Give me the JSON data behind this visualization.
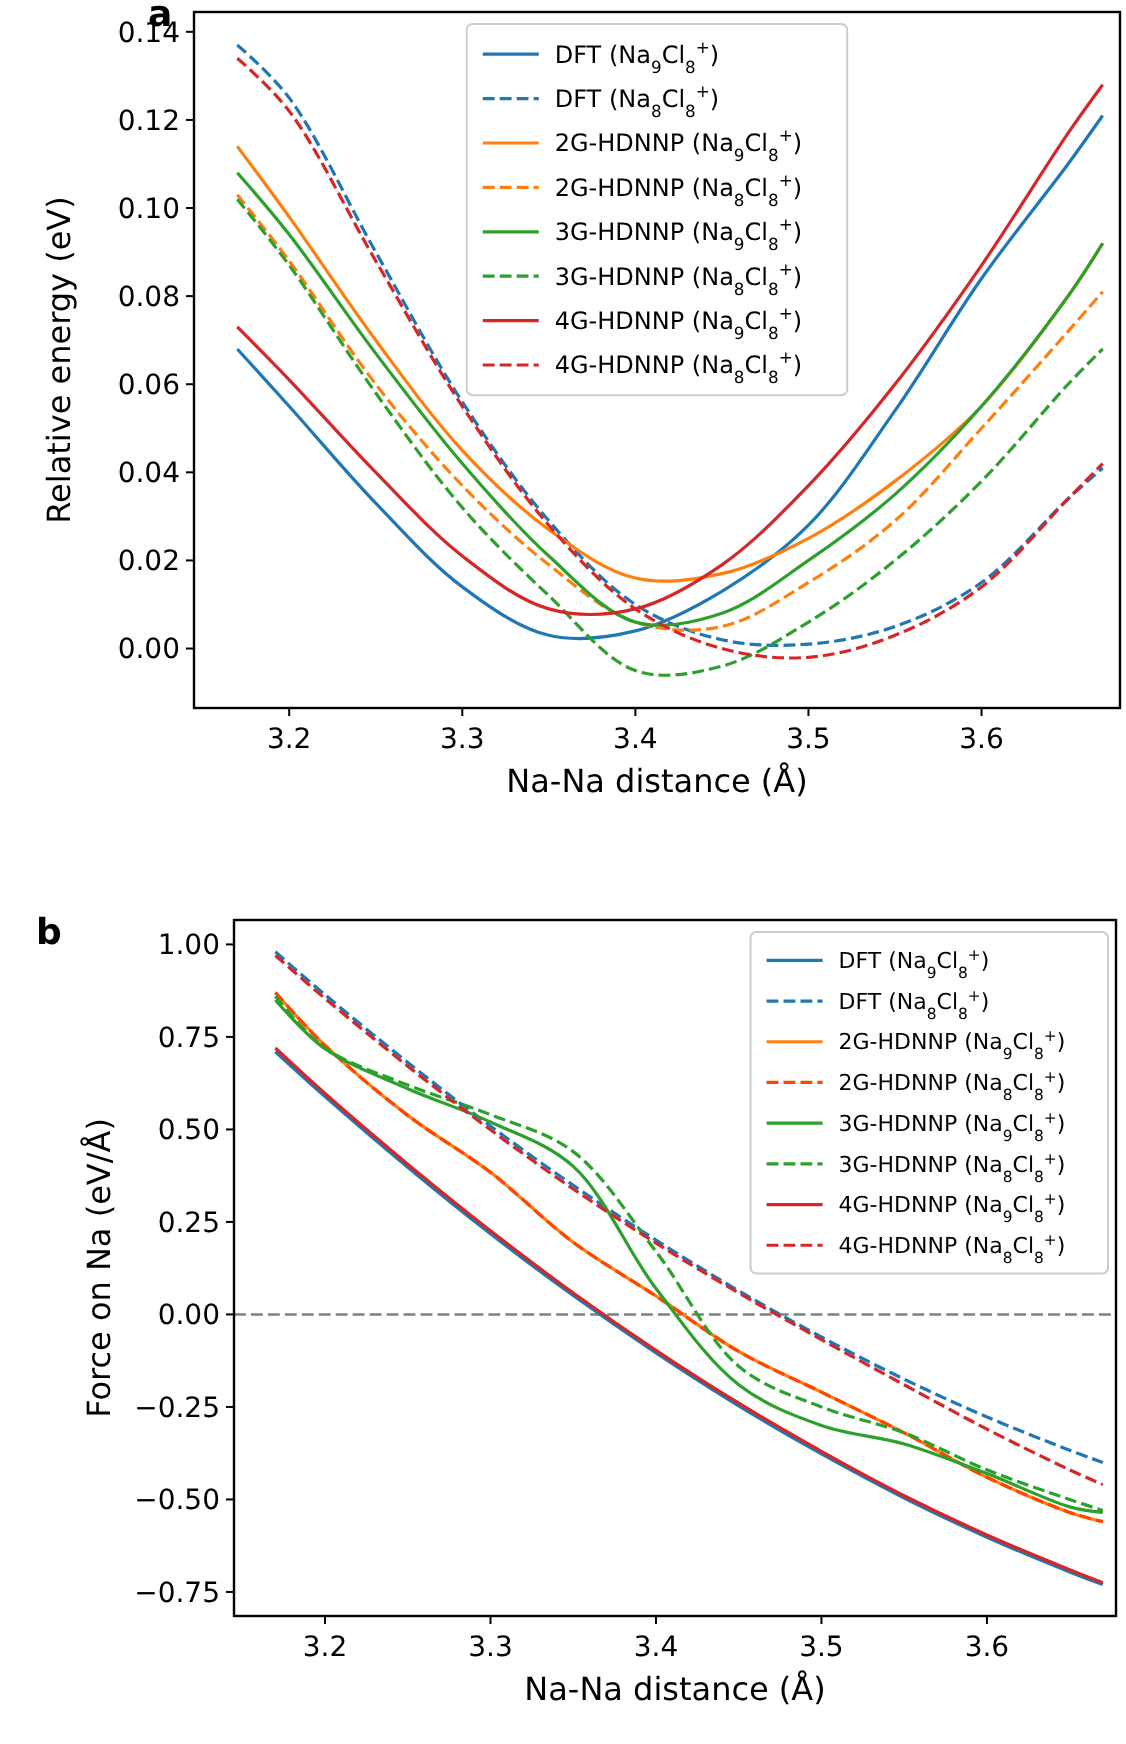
{
  "chart_data": [
    {
      "type": "line",
      "title": "a",
      "xlabel": "Na-Na distance (Å)",
      "ylabel": "Relative energy (eV)",
      "x": [
        3.17,
        3.2,
        3.25,
        3.3,
        3.35,
        3.4,
        3.45,
        3.5,
        3.55,
        3.6,
        3.65,
        3.67
      ],
      "xlim": [
        3.145,
        3.68
      ],
      "ylim": [
        -0.0135,
        0.1445
      ],
      "xticks": [
        3.2,
        3.3,
        3.4,
        3.5,
        3.6
      ],
      "yticks": [
        {
          "value": 0,
          "label": "0.00"
        },
        {
          "value": 0.02,
          "label": "0.02"
        },
        {
          "value": 0.04,
          "label": "0.04"
        },
        {
          "value": 0.06,
          "label": "0.06"
        },
        {
          "value": 0.08,
          "label": "0.08"
        },
        {
          "value": 0.1,
          "label": "0.10"
        },
        {
          "value": 0.12,
          "label": "0.12"
        },
        {
          "value": 0.14,
          "label": "0.14"
        }
      ],
      "legend": "top",
      "series": [
        {
          "name": "DFT (Na$_{9}$Cl$_{8}$$^{+}$)",
          "color": "#1f77b4",
          "line_style": "solid",
          "values": [
            0.068,
            0.055,
            0.033,
            0.014,
            0.003,
            0.004,
            0.013,
            0.028,
            0.054,
            0.084,
            0.11,
            0.121
          ]
        },
        {
          "name": "DFT (Na$_{8}$Cl$_{8}$$^{+}$)",
          "color": "#1f77b4",
          "line_style": "dashed",
          "values": [
            0.137,
            0.125,
            0.09,
            0.056,
            0.029,
            0.01,
            0.002,
            0.001,
            0.005,
            0.015,
            0.034,
            0.041
          ]
        },
        {
          "name": "2G-HDNNP (Na$_{9}$Cl$_{8}$$^{+}$)",
          "color": "#ff7f0e",
          "line_style": "solid",
          "values": [
            0.114,
            0.098,
            0.07,
            0.045,
            0.027,
            0.016,
            0.017,
            0.025,
            0.038,
            0.055,
            0.08,
            0.092
          ]
        },
        {
          "name": "2G-HDNNP (Na$_{8}$Cl$_{8}$$^{+}$)",
          "color": "#ff7f0e",
          "line_style": "dashed",
          "values": [
            0.103,
            0.088,
            0.06,
            0.037,
            0.019,
            0.006,
            0.005,
            0.015,
            0.029,
            0.05,
            0.072,
            0.081
          ]
        },
        {
          "name": "3G-HDNNP (Na$_{9}$Cl$_{8}$$^{+}$)",
          "color": "#2ca02c",
          "line_style": "solid",
          "values": [
            0.108,
            0.094,
            0.067,
            0.042,
            0.021,
            0.006,
            0.008,
            0.02,
            0.035,
            0.055,
            0.08,
            0.092
          ]
        },
        {
          "name": "3G-HDNNP (Na$_{8}$Cl$_{8}$$^{+}$)",
          "color": "#2ca02c",
          "line_style": "dashed",
          "values": [
            0.102,
            0.087,
            0.058,
            0.032,
            0.012,
            -0.005,
            -0.004,
            0.006,
            0.02,
            0.038,
            0.06,
            0.068
          ]
        },
        {
          "name": "4G-HDNNP (Na$_{9}$Cl$_{8}$$^{+}$)",
          "color": "#d62728",
          "line_style": "solid",
          "values": [
            0.073,
            0.061,
            0.04,
            0.021,
            0.009,
            0.009,
            0.019,
            0.037,
            0.06,
            0.087,
            0.117,
            0.128
          ]
        },
        {
          "name": "4G-HDNNP (Na$_{8}$Cl$_{8}$$^{+}$)",
          "color": "#d62728",
          "line_style": "dashed",
          "values": [
            0.134,
            0.122,
            0.088,
            0.055,
            0.028,
            0.009,
            0.0,
            -0.002,
            0.003,
            0.014,
            0.034,
            0.042
          ]
        }
      ]
    },
    {
      "type": "line",
      "title": "b",
      "xlabel": "Na-Na distance (Å)",
      "ylabel": "Force on Na (eV/Å)",
      "x": [
        3.17,
        3.2,
        3.25,
        3.3,
        3.35,
        3.4,
        3.45,
        3.5,
        3.55,
        3.6,
        3.65,
        3.67
      ],
      "xlim": [
        3.145,
        3.678
      ],
      "ylim": [
        -0.815,
        1.066
      ],
      "xticks": [
        3.2,
        3.3,
        3.4,
        3.5,
        3.6
      ],
      "yticks": [
        {
          "value": -0.75,
          "label": "−0.75"
        },
        {
          "value": -0.5,
          "label": "−0.50"
        },
        {
          "value": -0.25,
          "label": "−0.25"
        },
        {
          "value": 0,
          "label": "0.00"
        },
        {
          "value": 0.25,
          "label": "0.25"
        },
        {
          "value": 0.5,
          "label": "0.50"
        },
        {
          "value": 0.75,
          "label": "0.75"
        },
        {
          "value": 1,
          "label": "1.00"
        }
      ],
      "legend": "top right",
      "ref_lines": [
        {
          "axis": "y",
          "value": 0,
          "color": "#808080",
          "line_style": "dashed"
        }
      ],
      "series": [
        {
          "name": "DFT (Na$_{9}$Cl$_{8}$$^{+}$)",
          "color": "#1f77b4",
          "line_style": "solid",
          "values": [
            0.71,
            0.589,
            0.398,
            0.218,
            0.051,
            -0.104,
            -0.247,
            -0.377,
            -0.496,
            -0.602,
            -0.696,
            -0.73
          ]
        },
        {
          "name": "DFT (Na$_{8}$Cl$_{8}$$^{+}$)",
          "color": "#1f77b4",
          "line_style": "dashed",
          "values": [
            0.98,
            0.864,
            0.681,
            0.509,
            0.349,
            0.201,
            0.064,
            -0.061,
            -0.175,
            -0.277,
            -0.367,
            -0.4
          ]
        },
        {
          "name": "2G-HDNNP (Na$_{9}$Cl$_{8}$$^{+}$)",
          "color": "#ff7f0e",
          "line_style": "solid",
          "values": [
            0.87,
            0.727,
            0.538,
            0.384,
            0.195,
            0.05,
            -0.1,
            -0.21,
            -0.32,
            -0.44,
            -0.535,
            -0.56
          ]
        },
        {
          "name": "2G-HDNNP (Na$_{8}$Cl$_{8}$$^{+}$)",
          "color": "#ff4500",
          "line_style": "dashed",
          "values": [
            0.87,
            0.727,
            0.538,
            0.384,
            0.195,
            0.05,
            -0.1,
            -0.21,
            -0.32,
            -0.44,
            -0.535,
            -0.56
          ]
        },
        {
          "name": "3G-HDNNP (Na$_{9}$Cl$_{8}$$^{+}$)",
          "color": "#2ca02c",
          "line_style": "solid",
          "values": [
            0.85,
            0.718,
            0.61,
            0.52,
            0.4,
            0.07,
            -0.19,
            -0.3,
            -0.35,
            -0.43,
            -0.52,
            -0.535
          ]
        },
        {
          "name": "3G-HDNNP (Na$_{8}$Cl$_{8}$$^{+}$)",
          "color": "#2ca02c",
          "line_style": "dashed",
          "values": [
            0.86,
            0.72,
            0.62,
            0.54,
            0.44,
            0.17,
            -0.14,
            -0.25,
            -0.32,
            -0.42,
            -0.5,
            -0.53
          ]
        },
        {
          "name": "4G-HDNNP (Na$_{9}$Cl$_{8}$$^{+}$)",
          "color": "#d62728",
          "line_style": "solid",
          "values": [
            0.72,
            0.597,
            0.406,
            0.226,
            0.058,
            -0.097,
            -0.24,
            -0.37,
            -0.49,
            -0.596,
            -0.69,
            -0.725
          ]
        },
        {
          "name": "4G-HDNNP (Na$_{8}$Cl$_{8}$$^{+}$)",
          "color": "#d62728",
          "line_style": "dashed",
          "values": [
            0.97,
            0.854,
            0.671,
            0.499,
            0.339,
            0.193,
            0.058,
            -0.068,
            -0.19,
            -0.31,
            -0.42,
            -0.46
          ]
        }
      ]
    }
  ]
}
